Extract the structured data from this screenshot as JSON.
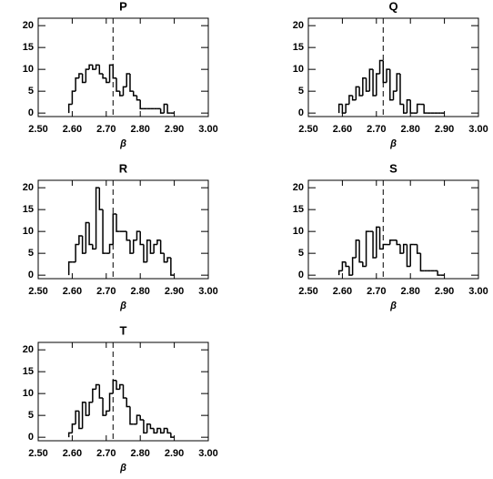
{
  "chart_data": [
    {
      "type": "histogram",
      "title": "P",
      "x_label": "β",
      "bins": [
        2.59,
        2.6,
        2.61,
        2.62,
        2.63,
        2.64,
        2.65,
        2.66,
        2.67,
        2.68,
        2.69,
        2.7,
        2.71,
        2.72,
        2.73,
        2.74,
        2.75,
        2.76,
        2.77,
        2.78,
        2.79,
        2.8,
        2.81,
        2.82,
        2.83,
        2.84,
        2.85,
        2.86,
        2.87,
        2.88,
        2.89,
        2.9
      ],
      "values": [
        2,
        5,
        8,
        9,
        7,
        10,
        11,
        10,
        11,
        9,
        8,
        7,
        11,
        8,
        5,
        4,
        6,
        9,
        5,
        4,
        3,
        1,
        1,
        1,
        1,
        1,
        1,
        0,
        2,
        0,
        0
      ],
      "vline": 2.72,
      "color": "#000000",
      "xlim": [
        2.5,
        3.0
      ],
      "xticks": [
        {
          "value": 2.5,
          "label": "2.50"
        },
        {
          "value": 2.6,
          "label": "2.60"
        },
        {
          "value": 2.7,
          "label": "2.70"
        },
        {
          "value": 2.8,
          "label": "2.80"
        },
        {
          "value": 2.9,
          "label": "2.90"
        },
        {
          "value": 3.0,
          "label": "3.00"
        }
      ],
      "ylim": [
        -0.8,
        21.7
      ],
      "yticks": [
        0,
        5,
        10,
        15,
        20
      ]
    },
    {
      "type": "histogram",
      "title": "Q",
      "x_label": "β",
      "bins": [
        2.59,
        2.6,
        2.61,
        2.62,
        2.63,
        2.64,
        2.65,
        2.66,
        2.67,
        2.68,
        2.69,
        2.7,
        2.71,
        2.72,
        2.73,
        2.74,
        2.75,
        2.76,
        2.77,
        2.78,
        2.79,
        2.8,
        2.81,
        2.82,
        2.83,
        2.84,
        2.85,
        2.86,
        2.87,
        2.88,
        2.89,
        2.9
      ],
      "values": [
        2,
        0,
        2,
        4,
        3,
        6,
        4,
        8,
        5,
        10,
        4,
        9,
        12,
        7,
        10,
        3,
        5,
        9,
        2,
        0,
        3,
        0,
        0,
        2,
        2,
        0,
        0,
        0,
        0,
        0,
        0
      ],
      "vline": 2.72,
      "color": "#000000",
      "xlim": [
        2.5,
        3.0
      ],
      "xticks": [
        {
          "value": 2.5,
          "label": "2.50"
        },
        {
          "value": 2.6,
          "label": "2.60"
        },
        {
          "value": 2.7,
          "label": "2.70"
        },
        {
          "value": 2.8,
          "label": "2.80"
        },
        {
          "value": 2.9,
          "label": "2.90"
        },
        {
          "value": 3.0,
          "label": "3.00"
        }
      ],
      "ylim": [
        -0.8,
        21.7
      ],
      "yticks": [
        0,
        5,
        10,
        15,
        20
      ]
    },
    {
      "type": "histogram",
      "title": "R",
      "x_label": "β",
      "bins": [
        2.59,
        2.6,
        2.61,
        2.62,
        2.63,
        2.64,
        2.65,
        2.66,
        2.67,
        2.68,
        2.69,
        2.7,
        2.71,
        2.72,
        2.73,
        2.74,
        2.75,
        2.76,
        2.77,
        2.78,
        2.79,
        2.8,
        2.81,
        2.82,
        2.83,
        2.84,
        2.85,
        2.86,
        2.87,
        2.88,
        2.89,
        2.9
      ],
      "values": [
        3,
        3,
        7,
        9,
        5,
        12,
        7,
        6,
        20,
        15,
        5,
        5,
        7,
        14,
        10,
        10,
        10,
        8,
        5,
        8,
        10,
        7,
        3,
        8,
        5,
        7,
        8,
        5,
        3,
        4,
        0
      ],
      "vline": 2.72,
      "color": "#000000",
      "xlim": [
        2.5,
        3.0
      ],
      "xticks": [
        {
          "value": 2.5,
          "label": "2.50"
        },
        {
          "value": 2.6,
          "label": "2.60"
        },
        {
          "value": 2.7,
          "label": "2.70"
        },
        {
          "value": 2.8,
          "label": "2.80"
        },
        {
          "value": 2.9,
          "label": "2.90"
        },
        {
          "value": 3.0,
          "label": "3.00"
        }
      ],
      "ylim": [
        -0.8,
        21.7
      ],
      "yticks": [
        0,
        5,
        10,
        15,
        20
      ]
    },
    {
      "type": "histogram",
      "title": "S",
      "x_label": "β",
      "bins": [
        2.59,
        2.6,
        2.61,
        2.62,
        2.63,
        2.64,
        2.65,
        2.66,
        2.67,
        2.68,
        2.69,
        2.7,
        2.71,
        2.72,
        2.73,
        2.74,
        2.75,
        2.76,
        2.77,
        2.78,
        2.79,
        2.8,
        2.81,
        2.82,
        2.83,
        2.84,
        2.85,
        2.86,
        2.87,
        2.88,
        2.89,
        2.9
      ],
      "values": [
        1,
        3,
        2,
        0,
        4,
        8,
        3,
        2,
        10,
        10,
        4,
        11,
        6,
        7,
        7,
        8,
        8,
        7,
        5,
        7,
        2,
        7,
        7,
        5,
        1,
        1,
        1,
        1,
        1,
        0,
        0
      ],
      "vline": 2.72,
      "color": "#000000",
      "xlim": [
        2.5,
        3.0
      ],
      "xticks": [
        {
          "value": 2.5,
          "label": "2.50"
        },
        {
          "value": 2.6,
          "label": "2.60"
        },
        {
          "value": 2.7,
          "label": "2.70"
        },
        {
          "value": 2.8,
          "label": "2.80"
        },
        {
          "value": 2.9,
          "label": "2.90"
        },
        {
          "value": 3.0,
          "label": "3.00"
        }
      ],
      "ylim": [
        -0.8,
        21.7
      ],
      "yticks": [
        0,
        5,
        10,
        15,
        20
      ]
    },
    {
      "type": "histogram",
      "title": "T",
      "x_label": "β",
      "bins": [
        2.59,
        2.6,
        2.61,
        2.62,
        2.63,
        2.64,
        2.65,
        2.66,
        2.67,
        2.68,
        2.69,
        2.7,
        2.71,
        2.72,
        2.73,
        2.74,
        2.75,
        2.76,
        2.77,
        2.78,
        2.79,
        2.8,
        2.81,
        2.82,
        2.83,
        2.84,
        2.85,
        2.86,
        2.87,
        2.88,
        2.89,
        2.9
      ],
      "values": [
        1,
        3,
        6,
        2,
        8,
        5,
        8,
        11,
        12,
        9,
        5,
        6,
        10,
        13,
        11,
        12,
        9,
        7,
        3,
        3,
        5,
        4,
        1,
        3,
        2,
        1,
        2,
        1,
        2,
        1,
        0
      ],
      "vline": 2.72,
      "color": "#000000",
      "xlim": [
        2.5,
        3.0
      ],
      "xticks": [
        {
          "value": 2.5,
          "label": "2.50"
        },
        {
          "value": 2.6,
          "label": "2.60"
        },
        {
          "value": 2.7,
          "label": "2.70"
        },
        {
          "value": 2.8,
          "label": "2.80"
        },
        {
          "value": 2.9,
          "label": "2.90"
        },
        {
          "value": 3.0,
          "label": "3.00"
        }
      ],
      "ylim": [
        -0.8,
        21.7
      ],
      "yticks": [
        0,
        5,
        10,
        15,
        20
      ]
    }
  ]
}
